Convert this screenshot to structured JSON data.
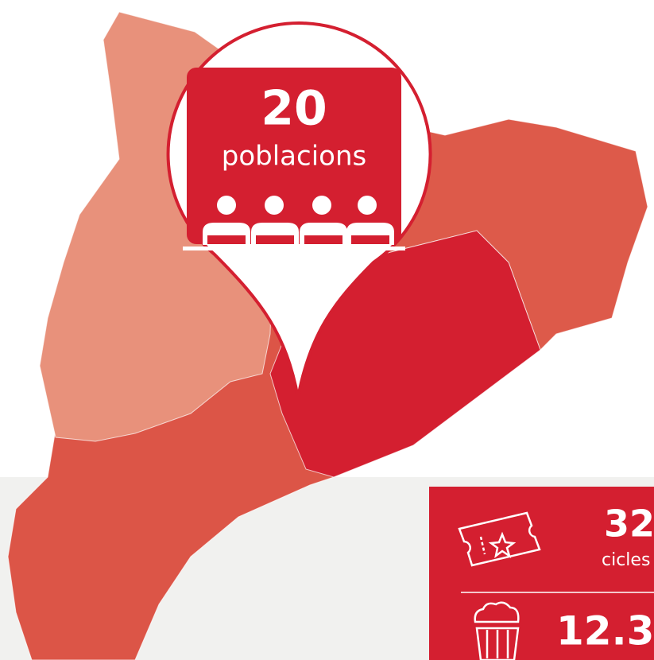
{
  "badge": {
    "value": "20",
    "label": "poblacions"
  },
  "stats": [
    {
      "value": "32",
      "label": "cicles"
    },
    {
      "value": "12.3"
    }
  ]
}
